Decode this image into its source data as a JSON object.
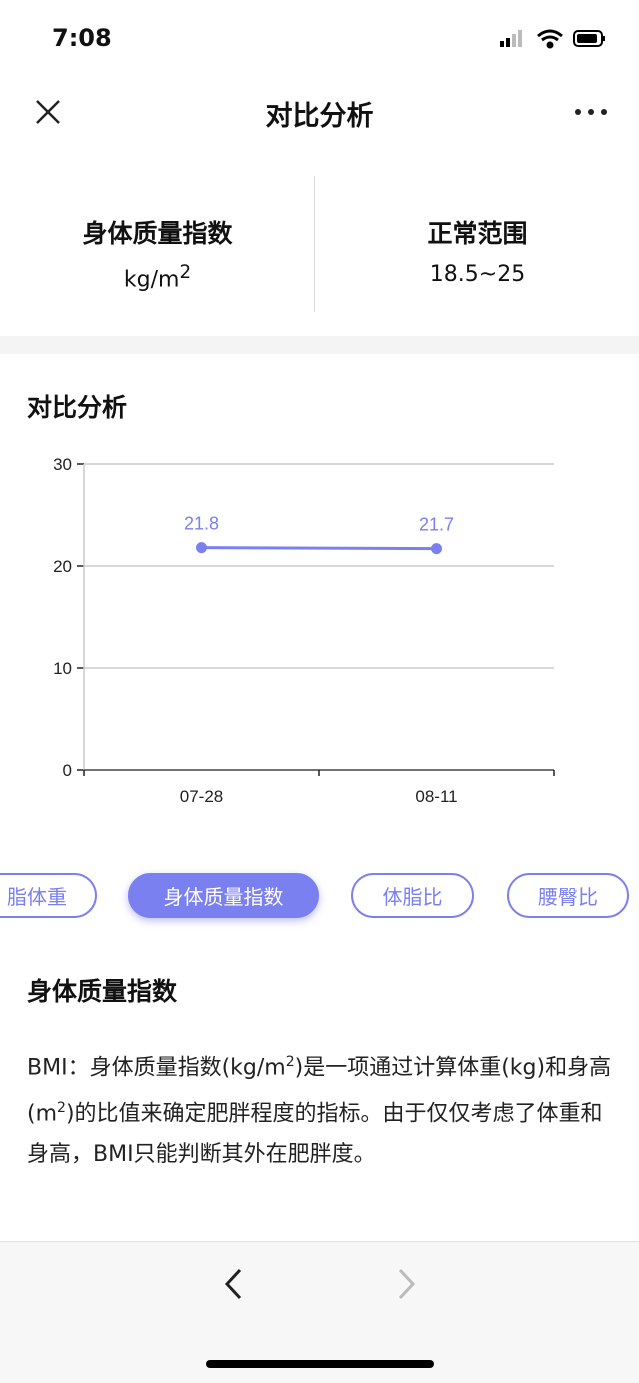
{
  "status": {
    "time": "7:08"
  },
  "nav": {
    "title": "对比分析"
  },
  "summary": {
    "metric": "身体质量指数",
    "unit": "kg/m",
    "unit_sup": "2",
    "range_label": "正常范围",
    "range_value": "18.5~25"
  },
  "section_title": "对比分析",
  "chart_data": {
    "type": "line",
    "categories": [
      "07-28",
      "08-11"
    ],
    "series": [
      {
        "values": [
          21.8,
          21.7
        ]
      }
    ],
    "data_labels": [
      "21.8",
      "21.7"
    ],
    "ylim": [
      0,
      30
    ],
    "yticks": [
      "0",
      "10",
      "20",
      "30"
    ],
    "grid": true,
    "color": "#7b80f0"
  },
  "chips": [
    {
      "label": "脂体重",
      "active": false
    },
    {
      "label": "身体质量指数",
      "active": true
    },
    {
      "label": "体脂比",
      "active": false
    },
    {
      "label": "腰臀比",
      "active": false
    }
  ],
  "description": {
    "title": "身体质量指数",
    "p1": "BMI：身体质量指数(kg/m",
    "sup1": "2",
    "p2": ")是一项通过计算体重(kg)和身高(m",
    "sup2": "2",
    "p3": ")的比值来确定肥胖程度的指标。由于仅仅考虑了体重和身高，BMI只能判断其外在肥胖度。"
  }
}
